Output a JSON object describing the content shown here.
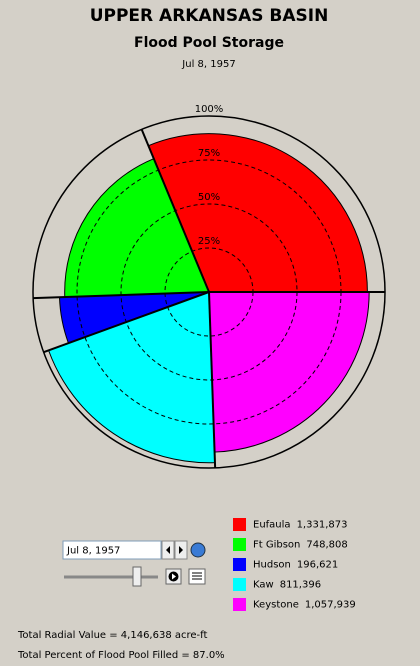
{
  "chart_data": {
    "type": "polar-area",
    "title": "UPPER ARKANSAS BASIN",
    "subtitle": "Flood Pool Storage",
    "date": "Jul 8, 1957",
    "rlim": [
      0,
      100
    ],
    "rticks": [
      {
        "value": 25,
        "label": "25%"
      },
      {
        "value": 50,
        "label": "50%"
      },
      {
        "value": 75,
        "label": "75%"
      },
      {
        "value": 100,
        "label": "100%"
      }
    ],
    "series": [
      {
        "name": "Eufaula",
        "color": "#ff0000",
        "value": 1331873,
        "value_label": "1,331,873",
        "percent": 90,
        "angle": 112.5
      },
      {
        "name": "Ft Gibson",
        "color": "#00ff00",
        "value": 748808,
        "value_label": "748,808",
        "percent": 82,
        "angle": 69.5
      },
      {
        "name": "Hudson",
        "color": "#0000ff",
        "value": 196621,
        "value_label": "196,621",
        "percent": 85,
        "angle": 18
      },
      {
        "name": "Kaw",
        "color": "#00ffff",
        "value": 811396,
        "value_label": "811,396",
        "percent": 97,
        "angle": 72
      },
      {
        "name": "Keystone",
        "color": "#ff00ff",
        "value": 1057939,
        "value_label": "1,057,939",
        "percent": 91,
        "angle": 88
      }
    ],
    "footer": [
      "Total Radial Value =  4,146,638 acre-ft",
      "Total Percent of Flood Pool Filled =  87.0%"
    ]
  }
}
